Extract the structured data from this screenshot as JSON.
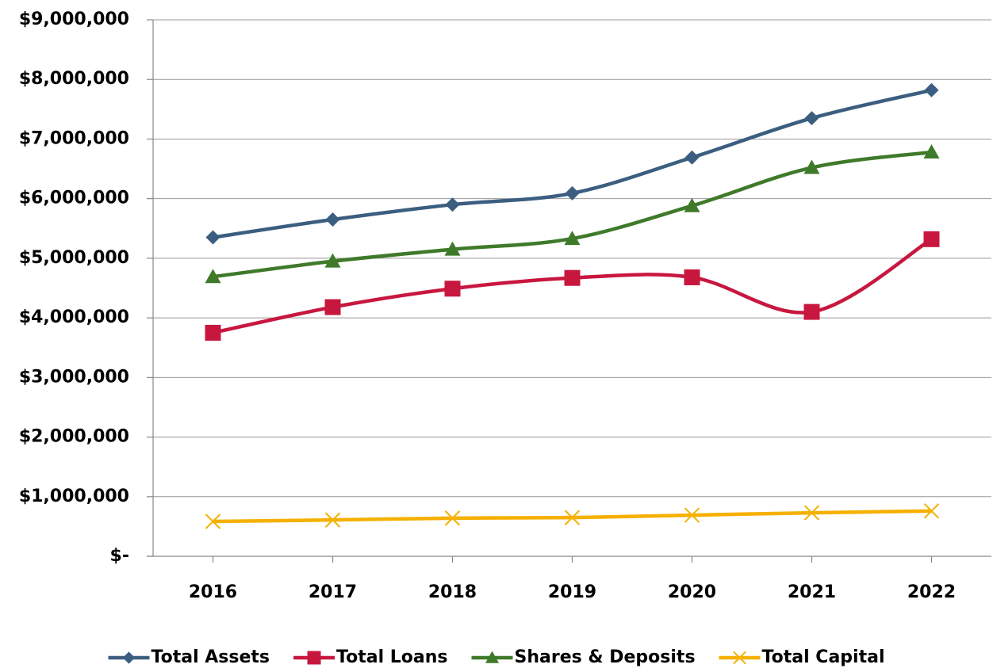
{
  "chart_data": {
    "type": "line",
    "smooth": true,
    "grid": true,
    "legend": "bottom",
    "categories": [
      "2016",
      "2017",
      "2018",
      "2019",
      "2020",
      "2021",
      "2022"
    ],
    "series": [
      {
        "name": "Total Assets",
        "color": "#3b5e80",
        "marker": "diamond",
        "values": [
          5350000,
          5650000,
          5900000,
          6090000,
          6690000,
          7350000,
          7820000
        ]
      },
      {
        "name": "Total Loans",
        "color": "#c8173f",
        "marker": "square",
        "values": [
          3750000,
          4180000,
          4490000,
          4670000,
          4680000,
          4100000,
          5320000
        ]
      },
      {
        "name": "Shares & Deposits",
        "color": "#3f7a2a",
        "marker": "triangle",
        "values": [
          4690000,
          4950000,
          5150000,
          5330000,
          5880000,
          6520000,
          6780000
        ]
      },
      {
        "name": "Total Capital",
        "color": "#f5b000",
        "marker": "x",
        "values": [
          585000,
          610000,
          640000,
          650000,
          690000,
          730000,
          760000
        ]
      }
    ],
    "ylim": [
      0,
      9000000
    ],
    "yticks": [
      {
        "value": 0,
        "label": "$-"
      },
      {
        "value": 1000000,
        "label": "$1,000,000"
      },
      {
        "value": 2000000,
        "label": "$2,000,000"
      },
      {
        "value": 3000000,
        "label": "$3,000,000"
      },
      {
        "value": 4000000,
        "label": "$4,000,000"
      },
      {
        "value": 5000000,
        "label": "$5,000,000"
      },
      {
        "value": 6000000,
        "label": "$6,000,000"
      },
      {
        "value": 7000000,
        "label": "$7,000,000"
      },
      {
        "value": 8000000,
        "label": "$8,000,000"
      },
      {
        "value": 9000000,
        "label": "$9,000,000"
      }
    ]
  }
}
